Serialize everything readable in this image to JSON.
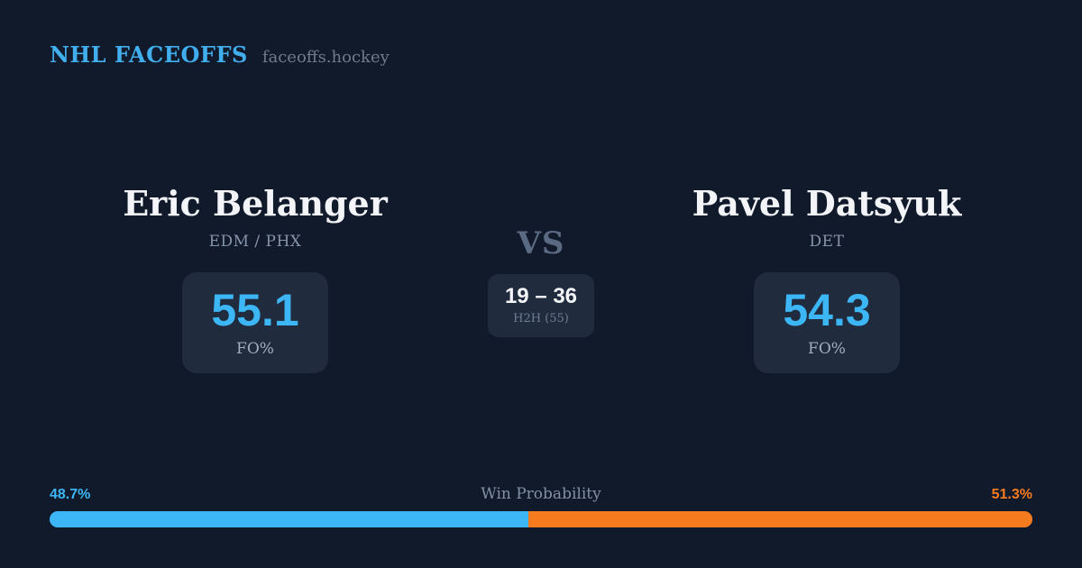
{
  "header": {
    "brand": "NHL FACEOFFS",
    "site": "faceoffs.hockey"
  },
  "players": {
    "left": {
      "name": "Eric Belanger",
      "team": "EDM / PHX",
      "stat_value": "55.1",
      "stat_label": "FO%"
    },
    "right": {
      "name": "Pavel Datsyuk",
      "team": "DET",
      "stat_value": "54.3",
      "stat_label": "FO%"
    }
  },
  "matchup": {
    "vs_label": "VS",
    "h2h_score": "19 – 36",
    "h2h_label": "H2H (55)"
  },
  "win_probability": {
    "title": "Win Probability",
    "left_pct_text": "48.7%",
    "right_pct_text": "51.3%",
    "left_value": 48.7,
    "right_value": 51.3
  },
  "colors": {
    "background": "#111a2b",
    "card": "#202b3d",
    "text_primary": "#f2f4f8",
    "text_muted": "#8694ab",
    "accent_blue": "#3db6f5",
    "accent_orange": "#f57b1e",
    "brand_blue": "#41aeee",
    "vs_gray": "#5b6a83"
  },
  "chart_data": {
    "type": "bar",
    "title": "Win Probability",
    "categories": [
      "Eric Belanger",
      "Pavel Datsyuk"
    ],
    "series": [
      {
        "name": "Win Probability %",
        "values": [
          48.7,
          51.3
        ]
      },
      {
        "name": "FO%",
        "values": [
          55.1,
          54.3
        ]
      },
      {
        "name": "H2H record (55 faceoffs)",
        "values": [
          19,
          36
        ]
      }
    ],
    "legend": false,
    "orientation": "horizontal-stacked"
  }
}
